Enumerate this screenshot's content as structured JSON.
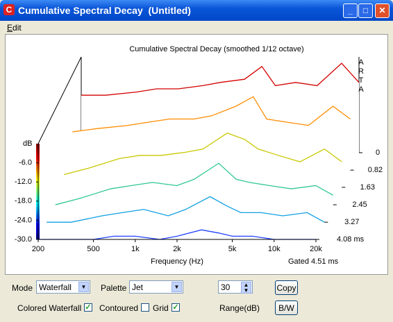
{
  "window": {
    "title": "Cumulative Spectral Decay  (Untitled)",
    "menu": [
      "Edit"
    ]
  },
  "chart_data": {
    "type": "waterfall",
    "title": "Cumulative Spectral Decay (smoothed 1/12 octave)",
    "x_label": "Frequency (Hz)",
    "y_label": "dB",
    "gate_label": "Gated 4.51 ms",
    "brand": "ARTA",
    "log_x": true,
    "x": [
      200,
      300,
      500,
      700,
      1000,
      1500,
      2000,
      3000,
      4000,
      5000,
      7000,
      10000,
      15000,
      20000
    ],
    "xlim": [
      200,
      20000
    ],
    "xticks": [
      200,
      500,
      {
        "value": 1000,
        "label": "1k"
      },
      {
        "value": 2000,
        "label": "2k"
      },
      {
        "value": 5000,
        "label": "5k"
      },
      {
        "value": 10000,
        "label": "10k"
      },
      {
        "value": 20000,
        "label": "20k"
      }
    ],
    "ylim": [
      -30,
      0
    ],
    "yticks": [
      {
        "value": -6,
        "label": "-6.0"
      },
      {
        "value": -12,
        "label": "-12.0"
      },
      {
        "value": -18,
        "label": "-18.0"
      },
      {
        "value": -24,
        "label": "-24.0"
      },
      {
        "value": -30,
        "label": "-30.0"
      }
    ],
    "zlim": [
      0,
      4.08
    ],
    "zticks": [
      0,
      0.82,
      1.63,
      2.45,
      3.27,
      {
        "value": 4.08,
        "label": "4.08 ms"
      }
    ],
    "series": [
      {
        "z": 0,
        "color": "#d40000",
        "values": [
          -12,
          -12,
          -11,
          -10,
          -10,
          -9,
          -8,
          -7,
          -3,
          -9,
          -8,
          -9,
          -2,
          -8
        ]
      },
      {
        "z": 0.82,
        "color": "#ff8c00",
        "values": [
          -18,
          -17,
          -16,
          -15,
          -14,
          -14,
          -13,
          -10,
          -7,
          -14,
          -15,
          -16,
          -10,
          -14
        ]
      },
      {
        "z": 1.63,
        "color": "#c8c800",
        "values": [
          -26,
          -24,
          -21,
          -20,
          -20,
          -19,
          -18,
          -13,
          -15,
          -18,
          -20,
          -22,
          -18,
          -22
        ]
      },
      {
        "z": 2.45,
        "color": "#30c890",
        "values": [
          -30,
          -28,
          -25,
          -24,
          -23,
          -24,
          -22,
          -17,
          -22,
          -23,
          -24,
          -25,
          -24,
          -27
        ]
      },
      {
        "z": 3.27,
        "color": "#10a0e0",
        "values": [
          -30,
          -30,
          -28,
          -27,
          -26,
          -28,
          -26,
          -22,
          -25,
          -27,
          -27,
          -28,
          -27,
          -30
        ]
      },
      {
        "z": 4.08,
        "color": "#2040ff",
        "values": [
          -30,
          -30,
          -30,
          -29,
          -29,
          -30,
          -29,
          -27,
          -28,
          -29,
          -29,
          -30,
          -30,
          -30
        ]
      }
    ]
  },
  "controls": {
    "mode_label": "Mode",
    "mode": "Waterfall",
    "palette_label": "Palette",
    "palette": "Jet",
    "range": 30,
    "range_label": "Range(dB)",
    "copy": "Copy",
    "bw": "B/W",
    "checkboxes": [
      {
        "label": "Colored Waterfall",
        "checked": true
      },
      {
        "label": "Contoured",
        "checked": false
      },
      {
        "label": "Grid",
        "checked": true
      }
    ]
  }
}
